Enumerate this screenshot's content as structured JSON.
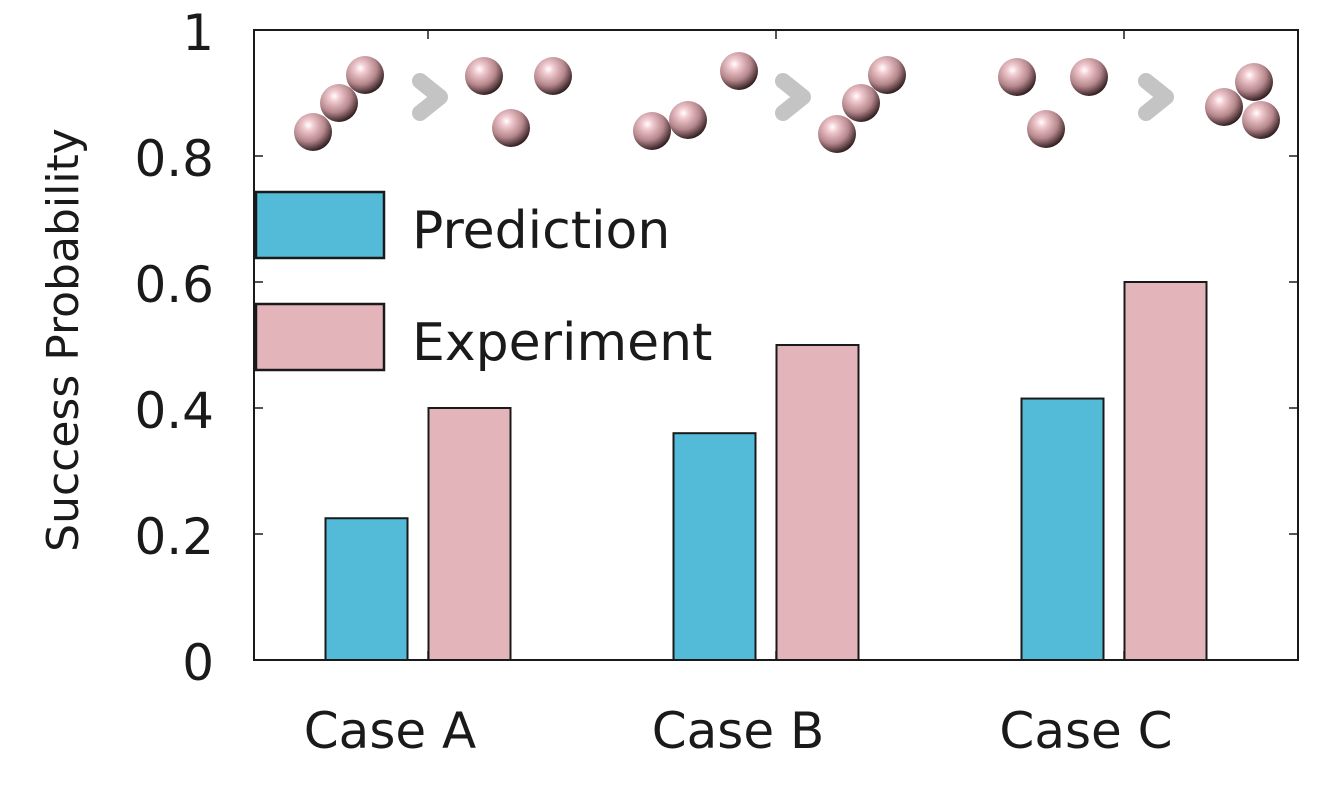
{
  "chart_data": {
    "type": "bar",
    "categories": [
      "Case A",
      "Case B",
      "Case C"
    ],
    "series": [
      {
        "name": "Prediction",
        "color": "#53bad8",
        "values": [
          0.225,
          0.36,
          0.415
        ]
      },
      {
        "name": "Experiment",
        "color": "#e4b4bb",
        "values": [
          0.4,
          0.5,
          0.6
        ]
      }
    ],
    "title": "",
    "xlabel": "",
    "ylabel": "Success Probability",
    "ylim": [
      0,
      1
    ],
    "yticks": [
      "0",
      "0.2",
      "0.4",
      "0.6",
      "0.8",
      "1"
    ],
    "grid": false,
    "legend_position": "top-left",
    "annotations": "sphere-cluster rearrangement illustration above each case (before ❯ after)"
  },
  "colors": {
    "sphere": "#d9a7ad",
    "arrow": "#c4c4c4",
    "frame": "#1a1a1a"
  },
  "icons": {
    "sphere": "pink-sphere-icon",
    "arrow": "chevron-right-icon"
  }
}
